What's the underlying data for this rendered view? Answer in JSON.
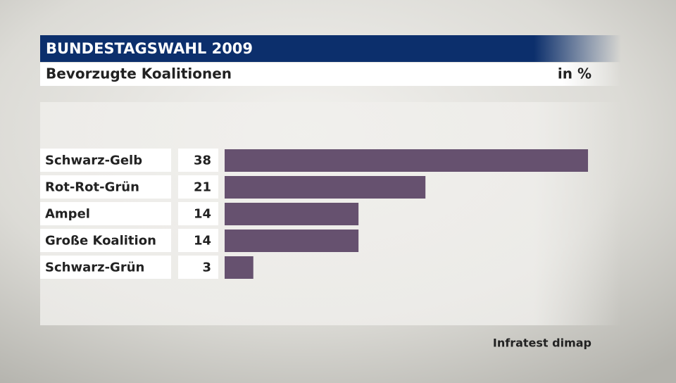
{
  "chart_data": {
    "type": "hbar",
    "title": "BUNDESTAGSWAHL 2009",
    "subtitle": "Bevorzugte Koalitionen",
    "unit_label": "in %",
    "source": "Infratest dimap",
    "categories": [
      "Schwarz-Gelb",
      "Rot-Rot-Grün",
      "Ampel",
      "Große Koalition",
      "Schwarz-Grün"
    ],
    "values": [
      38,
      21,
      14,
      14,
      3
    ],
    "color": "#66516f"
  }
}
